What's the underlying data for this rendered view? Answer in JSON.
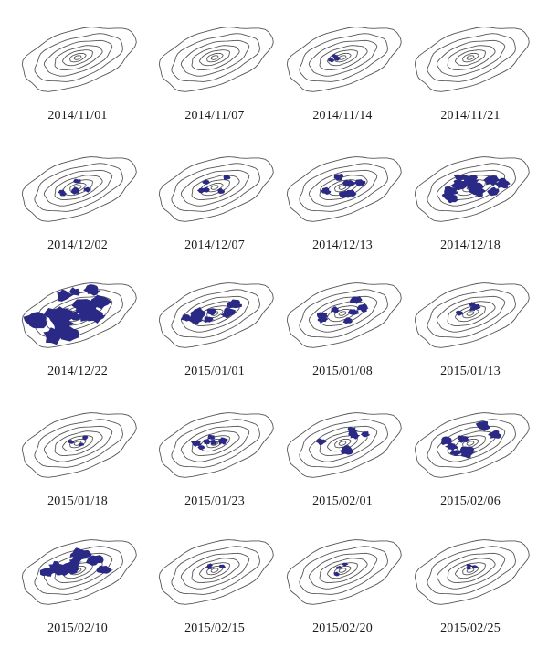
{
  "snow_color": "#2a2a86",
  "contour_color": "#555555",
  "panels": [
    {
      "date": "2014/11/01",
      "cover": 0
    },
    {
      "date": "2014/11/07",
      "cover": 0
    },
    {
      "date": "2014/11/14",
      "cover": 0.06
    },
    {
      "date": "2014/11/21",
      "cover": 0
    },
    {
      "date": "2014/12/02",
      "cover": 0.18
    },
    {
      "date": "2014/12/07",
      "cover": 0.15
    },
    {
      "date": "2014/12/13",
      "cover": 0.3
    },
    {
      "date": "2014/12/18",
      "cover": 0.55
    },
    {
      "date": "2014/12/22",
      "cover": 0.8
    },
    {
      "date": "2015/01/01",
      "cover": 0.42
    },
    {
      "date": "2015/01/08",
      "cover": 0.3
    },
    {
      "date": "2015/01/13",
      "cover": 0.12
    },
    {
      "date": "2015/01/18",
      "cover": 0.05
    },
    {
      "date": "2015/01/23",
      "cover": 0.22
    },
    {
      "date": "2015/02/01",
      "cover": 0.3
    },
    {
      "date": "2015/02/06",
      "cover": 0.42
    },
    {
      "date": "2015/02/10",
      "cover": 0.5
    },
    {
      "date": "2015/02/15",
      "cover": 0.03
    },
    {
      "date": "2015/02/20",
      "cover": 0.03
    },
    {
      "date": "2015/02/25",
      "cover": 0.03
    }
  ]
}
